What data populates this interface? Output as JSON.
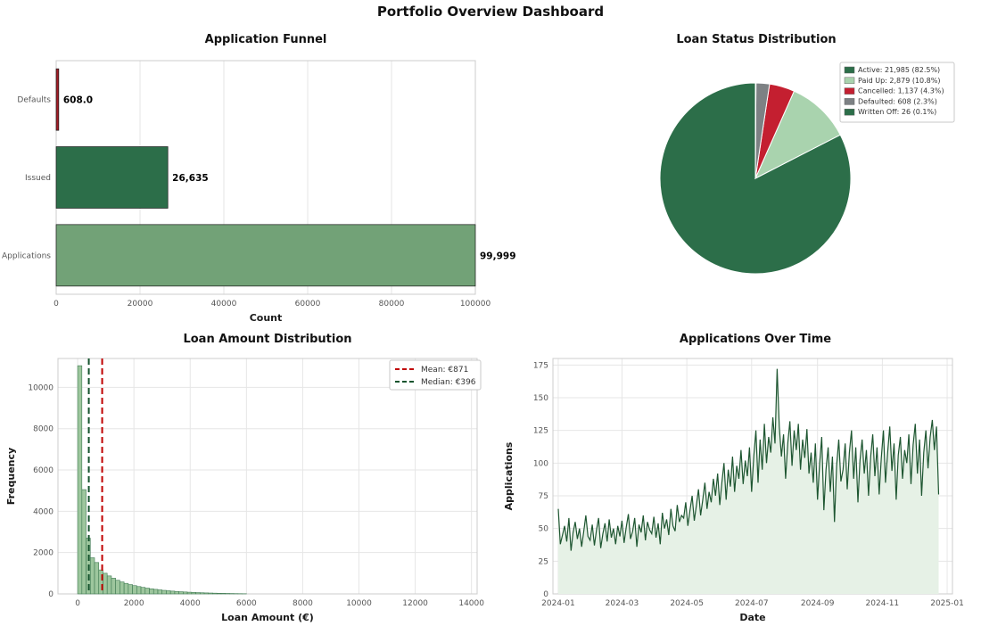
{
  "dashboard_title": "Portfolio Overview Dashboard",
  "chart_data": [
    {
      "name": "application-funnel",
      "type": "bar",
      "orientation": "horizontal",
      "title": "Application Funnel",
      "categories": [
        "Defaults",
        "Issued",
        "Applications"
      ],
      "values": [
        608,
        26635,
        99999
      ],
      "value_labels": [
        "608.0",
        "26,635",
        "99,999"
      ],
      "bar_colors": [
        "#a21c26",
        "#2c6e49",
        "#72a277"
      ],
      "xlabel": "Count",
      "xlim": [
        0,
        100000
      ],
      "xticks": [
        0,
        20000,
        40000,
        60000,
        80000,
        100000
      ],
      "grid": true
    },
    {
      "name": "loan-status-distribution",
      "type": "pie",
      "title": "Loan Status Distribution",
      "labels": [
        "Active",
        "Paid Up",
        "Cancelled",
        "Defaulted",
        "Written Off"
      ],
      "values": [
        21985,
        2879,
        1137,
        608,
        26
      ],
      "percents": [
        82.5,
        10.8,
        4.3,
        2.3,
        0.1
      ],
      "legend_labels": [
        "Active: 21,985 (82.5%)",
        "Paid Up: 2,879 (10.8%)",
        "Cancelled: 1,137 (4.3%)",
        "Defaulted: 608 (2.3%)",
        "Written Off: 26 (0.1%)"
      ],
      "colors": [
        "#2c6e49",
        "#a9d3ae",
        "#c41f30",
        "#7d8184",
        "#2c6e49"
      ],
      "start_angle": 90,
      "counterclockwise": true,
      "legend_position": "upper right"
    },
    {
      "name": "loan-amount-distribution",
      "type": "bar",
      "subtype": "histogram",
      "title": "Loan Amount Distribution",
      "xlabel": "Loan Amount (€)",
      "ylabel": "Frequency",
      "bin_start": 0,
      "bin_width": 150,
      "frequencies": [
        11050,
        5050,
        2700,
        1750,
        1520,
        1160,
        1000,
        870,
        760,
        660,
        580,
        510,
        450,
        400,
        355,
        315,
        280,
        248,
        220,
        195,
        172,
        152,
        135,
        120,
        105,
        93,
        82,
        72,
        63,
        55,
        48,
        42,
        36,
        31,
        26,
        22,
        18,
        14,
        11,
        8
      ],
      "xlim": [
        -700,
        14200
      ],
      "ylim": [
        0,
        11400
      ],
      "xticks": [
        0,
        2000,
        4000,
        6000,
        8000,
        10000,
        12000,
        14000
      ],
      "yticks": [
        0,
        2000,
        4000,
        6000,
        8000,
        10000
      ],
      "mean": 871,
      "median": 396,
      "mean_label": "Mean: €871",
      "median_label": "Median: €396",
      "bar_color": "#9dc69d",
      "bar_edge": "#3f7a52",
      "mean_color": "#c00000",
      "median_color": "#14532d",
      "grid": true
    },
    {
      "name": "applications-over-time",
      "type": "line",
      "title": "Applications Over Time",
      "xlabel": "Date",
      "ylabel": "Applications",
      "x_tick_labels": [
        "2024-01",
        "2024-03",
        "2024-05",
        "2024-07",
        "2024-09",
        "2024-11",
        "2025-01"
      ],
      "x_tick_days": [
        0,
        60,
        121,
        182,
        244,
        305,
        366
      ],
      "x_domain_days": [
        -5,
        371
      ],
      "yticks": [
        0,
        25,
        50,
        75,
        100,
        125,
        150,
        175
      ],
      "ylim": [
        0,
        180
      ],
      "interval_days": 2,
      "values": [
        65,
        38,
        45,
        52,
        40,
        58,
        33,
        47,
        55,
        42,
        50,
        36,
        48,
        60,
        44,
        41,
        53,
        37,
        49,
        58,
        35,
        46,
        54,
        40,
        57,
        43,
        50,
        38,
        52,
        44,
        56,
        39,
        51,
        61,
        42,
        48,
        58,
        36,
        53,
        47,
        60,
        41,
        55,
        49,
        46,
        59,
        43,
        54,
        38,
        62,
        50,
        57,
        45,
        65,
        52,
        48,
        68,
        55,
        60,
        58,
        70,
        52,
        64,
        75,
        56,
        68,
        80,
        60,
        72,
        85,
        65,
        78,
        70,
        88,
        75,
        92,
        68,
        85,
        100,
        72,
        95,
        82,
        105,
        78,
        98,
        88,
        110,
        84,
        102,
        90,
        112,
        78,
        105,
        125,
        85,
        118,
        95,
        130,
        100,
        120,
        108,
        135,
        115,
        172,
        128,
        105,
        122,
        88,
        115,
        132,
        98,
        125,
        110,
        130,
        95,
        118,
        104,
        126,
        92,
        108,
        85,
        115,
        72,
        100,
        120,
        64,
        95,
        112,
        78,
        105,
        55,
        98,
        118,
        86,
        95,
        115,
        80,
        108,
        125,
        88,
        112,
        70,
        102,
        118,
        92,
        110,
        75,
        105,
        122,
        90,
        112,
        76,
        104,
        125,
        85,
        108,
        128,
        94,
        115,
        72,
        106,
        120,
        88,
        110,
        100,
        122,
        84,
        114,
        130,
        92,
        118,
        75,
        108,
        125,
        96,
        120,
        133,
        110,
        128,
        76
      ],
      "line_color": "#1e5631",
      "fill_color": "#e6f1e6"
    }
  ]
}
